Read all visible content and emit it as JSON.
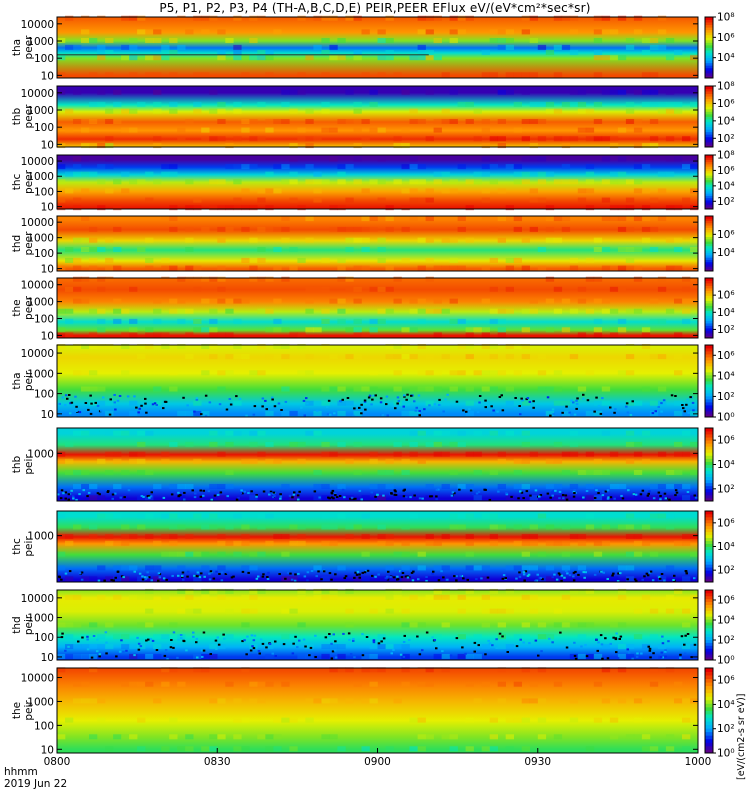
{
  "title": "P5, P1, P2, P3, P4 (TH-A,B,C,D,E) PEIR,PEER EFlux eV/(eV*cm²*sec*sr)",
  "footer": {
    "line1": "hhmm",
    "line2": "2019 Jun 22"
  },
  "colorbar_unit": "[eV/(cm2-s sr eV)]",
  "chart_data": {
    "type": "heatmap",
    "x_tick_labels": [
      "0800",
      "0830",
      "0900",
      "0930",
      "1000"
    ],
    "x_range": [
      "0800",
      "1000"
    ],
    "y_scale": "log",
    "panels": [
      {
        "id": "tha-peer",
        "label": [
          "tha",
          "peer"
        ],
        "yticks": [
          "10",
          "100",
          "1000",
          "10000"
        ],
        "ylim": [
          7,
          25000
        ],
        "cbar_ticks": [
          "10⁴",
          "10⁶",
          "10⁸"
        ],
        "cbar_range": [
          2,
          8
        ],
        "bands": [
          [
            1.0,
            0.9,
            0.9
          ],
          [
            2.0,
            0.3,
            0.85
          ],
          [
            2.3,
            0.2,
            0.6
          ],
          [
            2.6,
            0.05,
            0.4
          ],
          [
            3.0,
            0.4,
            0.75
          ],
          [
            3.5,
            0.7,
            0.9
          ],
          [
            4.3,
            0.8,
            0.95
          ]
        ],
        "streak": 2.2
      },
      {
        "id": "thb-peer",
        "label": [
          "thb",
          "peer"
        ],
        "yticks": [
          "10",
          "100",
          "1000",
          "10000"
        ],
        "ylim": [
          7,
          25000
        ],
        "cbar_ticks": [
          "10²",
          "10⁴",
          "10⁶",
          "10⁸"
        ],
        "cbar_range": [
          1,
          8
        ],
        "bands": [
          [
            0.9,
            0.6,
            0.9
          ],
          [
            1.3,
            0.9,
            0.98
          ],
          [
            1.8,
            0.7,
            0.9
          ],
          [
            2.3,
            0.8,
            0.95
          ],
          [
            2.9,
            0.55,
            0.75
          ],
          [
            3.3,
            0.35,
            0.5
          ],
          [
            4.0,
            0.0,
            0.1
          ]
        ]
      },
      {
        "id": "thc-peer",
        "label": [
          "thc",
          "peer"
        ],
        "yticks": [
          "10",
          "100",
          "1000",
          "10000"
        ],
        "ylim": [
          7,
          25000
        ],
        "cbar_ticks": [
          "10²",
          "10⁴",
          "10⁶",
          "10⁸"
        ],
        "cbar_range": [
          1,
          8
        ],
        "bands": [
          [
            0.9,
            0.95,
            1.0
          ],
          [
            1.4,
            0.85,
            0.95
          ],
          [
            2.0,
            0.7,
            0.85
          ],
          [
            2.6,
            0.55,
            0.7
          ],
          [
            3.1,
            0.3,
            0.45
          ],
          [
            3.6,
            0.1,
            0.25
          ],
          [
            4.1,
            0.0,
            0.05
          ]
        ]
      },
      {
        "id": "thd-peer",
        "label": [
          "thd",
          "peer"
        ],
        "yticks": [
          "10",
          "100",
          "1000",
          "10000"
        ],
        "ylim": [
          7,
          25000
        ],
        "cbar_ticks": [
          "10⁴",
          "10⁶"
        ],
        "cbar_range": [
          2,
          8
        ],
        "bands": [
          [
            1.0,
            0.8,
            0.95
          ],
          [
            1.5,
            0.55,
            0.8
          ],
          [
            2.2,
            0.35,
            0.6
          ],
          [
            2.8,
            0.6,
            0.8
          ],
          [
            3.5,
            0.85,
            0.95
          ],
          [
            4.2,
            0.75,
            0.9
          ]
        ]
      },
      {
        "id": "the-peer",
        "label": [
          "the",
          "peer"
        ],
        "yticks": [
          "10",
          "100",
          "1000",
          "10000"
        ],
        "ylim": [
          7,
          25000
        ],
        "cbar_ticks": [
          "10²",
          "10⁴",
          "10⁶"
        ],
        "cbar_range": [
          1,
          8
        ],
        "bands": [
          [
            1.0,
            0.95,
            1.0
          ],
          [
            1.3,
            0.4,
            0.7
          ],
          [
            1.8,
            0.25,
            0.55
          ],
          [
            2.4,
            0.5,
            0.75
          ],
          [
            3.0,
            0.75,
            0.9
          ],
          [
            3.7,
            0.85,
            0.95
          ],
          [
            4.3,
            0.8,
            0.92
          ]
        ]
      },
      {
        "id": "tha-peir",
        "label": [
          "tha",
          "peir"
        ],
        "yticks": [
          "10",
          "100",
          "1000",
          "10000"
        ],
        "ylim": [
          7,
          25000
        ],
        "cbar_ticks": [
          "10⁰",
          "10²",
          "10⁴",
          "10⁶"
        ],
        "cbar_range": [
          0,
          7
        ],
        "bands": [
          [
            1.0,
            0.1,
            0.4
          ],
          [
            1.5,
            0.25,
            0.45
          ],
          [
            2.2,
            0.45,
            0.6
          ],
          [
            3.0,
            0.6,
            0.72
          ],
          [
            3.8,
            0.65,
            0.75
          ],
          [
            4.3,
            0.6,
            0.7
          ]
        ],
        "speckle": 1.8
      },
      {
        "id": "thb-peir",
        "label": [
          "thb",
          "peir"
        ],
        "yticks": [
          "1000"
        ],
        "ylim": [
          20,
          8000
        ],
        "cbar_ticks": [
          "10²",
          "10⁴",
          "10⁶"
        ],
        "cbar_range": [
          1,
          7
        ],
        "bands": [
          [
            1.4,
            0.0,
            0.2
          ],
          [
            1.8,
            0.15,
            0.3
          ],
          [
            2.3,
            0.45,
            0.6
          ],
          [
            2.7,
            0.7,
            0.8
          ],
          [
            2.95,
            0.95,
            1.0
          ],
          [
            3.3,
            0.4,
            0.55
          ],
          [
            3.7,
            0.3,
            0.45
          ]
        ],
        "speckle": 1.6
      },
      {
        "id": "thc-peir",
        "label": [
          "thc",
          "peir"
        ],
        "yticks": [
          "1000"
        ],
        "ylim": [
          20,
          8000
        ],
        "cbar_ticks": [
          "10²",
          "10⁴",
          "10⁶"
        ],
        "cbar_range": [
          1,
          7
        ],
        "bands": [
          [
            1.4,
            0.0,
            0.2
          ],
          [
            1.8,
            0.15,
            0.3
          ],
          [
            2.3,
            0.45,
            0.6
          ],
          [
            2.7,
            0.75,
            0.85
          ],
          [
            2.95,
            0.95,
            1.0
          ],
          [
            3.3,
            0.45,
            0.55
          ],
          [
            3.7,
            0.35,
            0.45
          ]
        ],
        "speckle": 1.6
      },
      {
        "id": "thd-peir",
        "label": [
          "thd",
          "peir"
        ],
        "yticks": [
          "10",
          "100",
          "1000",
          "10000"
        ],
        "ylim": [
          7,
          25000
        ],
        "cbar_ticks": [
          "10⁰",
          "10²",
          "10⁴",
          "10⁶"
        ],
        "cbar_range": [
          0,
          7
        ],
        "bands": [
          [
            1.0,
            0.05,
            0.3
          ],
          [
            1.5,
            0.2,
            0.4
          ],
          [
            2.0,
            0.35,
            0.5
          ],
          [
            2.6,
            0.5,
            0.62
          ],
          [
            3.3,
            0.6,
            0.7
          ],
          [
            4.0,
            0.62,
            0.72
          ],
          [
            4.3,
            0.55,
            0.65
          ]
        ],
        "speckle": 2.1
      },
      {
        "id": "the-peir",
        "label": [
          "the",
          "peir"
        ],
        "yticks": [
          "10",
          "100",
          "1000",
          "10000"
        ],
        "ylim": [
          7,
          25000
        ],
        "cbar_ticks": [
          "10⁰",
          "10²",
          "10⁴",
          "10⁶"
        ],
        "cbar_range": [
          0,
          7
        ],
        "bands": [
          [
            1.0,
            0.4,
            0.6
          ],
          [
            1.5,
            0.5,
            0.65
          ],
          [
            2.2,
            0.6,
            0.72
          ],
          [
            3.0,
            0.7,
            0.8
          ],
          [
            3.7,
            0.78,
            0.88
          ],
          [
            4.3,
            0.85,
            0.95
          ]
        ]
      }
    ]
  }
}
